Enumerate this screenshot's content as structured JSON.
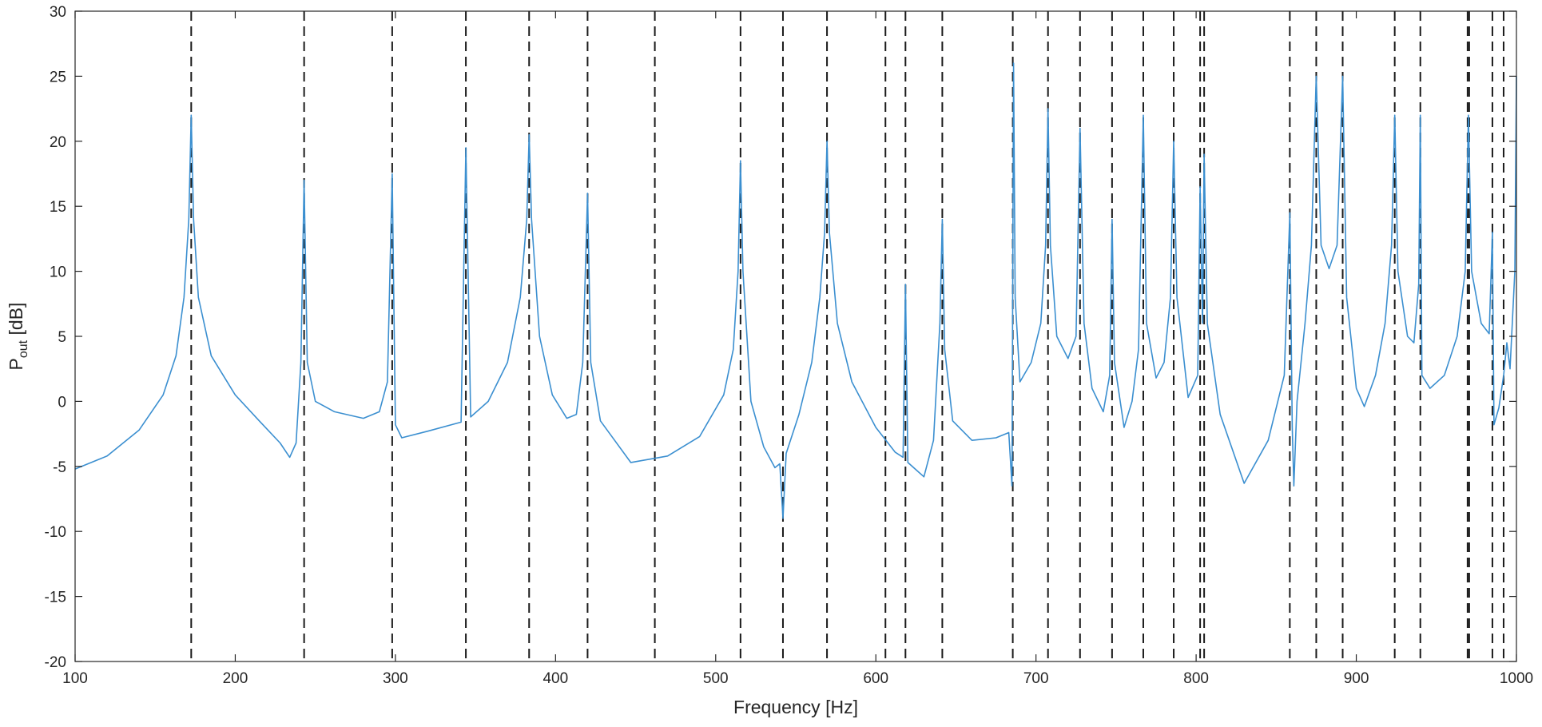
{
  "chart_data": {
    "type": "line",
    "title": "",
    "xlabel": "Frequency [Hz]",
    "ylabel": {
      "main": "P",
      "subscript": "out",
      "unit": " [dB]"
    },
    "xlim": [
      100,
      1000
    ],
    "ylim": [
      -20,
      30
    ],
    "x_ticks": [
      100,
      200,
      300,
      400,
      500,
      600,
      700,
      800,
      900,
      1000
    ],
    "y_ticks": [
      -20,
      -15,
      -10,
      -5,
      0,
      5,
      10,
      15,
      20,
      25,
      30
    ],
    "grid": false,
    "legend": "none",
    "colors": {
      "series": "#3b8fd0",
      "mode_lines": "#1a1a1a",
      "axes": "#262626"
    },
    "series": [
      {
        "values_note_free": true,
        "points": [
          [
            100,
            -5.2
          ],
          [
            120,
            -4.2
          ],
          [
            140,
            -2.2
          ],
          [
            155,
            0.5
          ],
          [
            163,
            3.5
          ],
          [
            168,
            8
          ],
          [
            171,
            14
          ],
          [
            172.5,
            22
          ],
          [
            174,
            14
          ],
          [
            177,
            8
          ],
          [
            185,
            3.5
          ],
          [
            200,
            0.5
          ],
          [
            215,
            -1.5
          ],
          [
            228,
            -3.2
          ],
          [
            234,
            -4.3
          ],
          [
            238,
            -3.2
          ],
          [
            241,
            3
          ],
          [
            243,
            17
          ],
          [
            245,
            3
          ],
          [
            250,
            0
          ],
          [
            262,
            -0.8
          ],
          [
            280,
            -1.3
          ],
          [
            290,
            -0.8
          ],
          [
            295,
            1.5
          ],
          [
            298,
            17.5
          ],
          [
            300,
            -1.8
          ],
          [
            304,
            -2.8
          ],
          [
            320,
            -2.3
          ],
          [
            341,
            -1.6
          ],
          [
            344,
            19.5
          ],
          [
            347,
            -1.2
          ],
          [
            358,
            0
          ],
          [
            370,
            3
          ],
          [
            378,
            8
          ],
          [
            382,
            14
          ],
          [
            383.5,
            20.5
          ],
          [
            385,
            14
          ],
          [
            390,
            5
          ],
          [
            398,
            0.5
          ],
          [
            407,
            -1.3
          ],
          [
            413,
            -1
          ],
          [
            417,
            3
          ],
          [
            420,
            16
          ],
          [
            422,
            3
          ],
          [
            428,
            -1.5
          ],
          [
            447,
            -4.7
          ],
          [
            470,
            -4.2
          ],
          [
            490,
            -2.7
          ],
          [
            505,
            0.5
          ],
          [
            511,
            4
          ],
          [
            514,
            10
          ],
          [
            515.5,
            18.5
          ],
          [
            517,
            10
          ],
          [
            522,
            0
          ],
          [
            530,
            -3.5
          ],
          [
            537,
            -5.1
          ],
          [
            540,
            -4.8
          ],
          [
            542,
            -9
          ],
          [
            544,
            -4
          ],
          [
            552,
            -1
          ],
          [
            560,
            3
          ],
          [
            565,
            8
          ],
          [
            568,
            13
          ],
          [
            569.5,
            20
          ],
          [
            571,
            13
          ],
          [
            576,
            6
          ],
          [
            585,
            1.5
          ],
          [
            600,
            -2
          ],
          [
            612,
            -3.9
          ],
          [
            617,
            -4.3
          ],
          [
            618.5,
            9
          ],
          [
            620,
            -4.7
          ],
          [
            630,
            -5.8
          ],
          [
            636,
            -3
          ],
          [
            640,
            6
          ],
          [
            641.5,
            14
          ],
          [
            643,
            4
          ],
          [
            648,
            -1.5
          ],
          [
            660,
            -3
          ],
          [
            675,
            -2.8
          ],
          [
            683,
            -2.4
          ],
          [
            685,
            -6.5
          ],
          [
            686,
            26
          ],
          [
            687,
            8
          ],
          [
            690,
            1.5
          ],
          [
            697,
            3
          ],
          [
            703,
            6
          ],
          [
            706,
            12
          ],
          [
            707.5,
            22.5
          ],
          [
            709,
            12
          ],
          [
            713,
            5
          ],
          [
            720,
            3.3
          ],
          [
            725,
            5
          ],
          [
            727.5,
            21
          ],
          [
            730,
            6
          ],
          [
            735,
            1
          ],
          [
            742,
            -0.8
          ],
          [
            746,
            2
          ],
          [
            747.5,
            14
          ],
          [
            749,
            3
          ],
          [
            755,
            -2
          ],
          [
            760,
            0
          ],
          [
            764,
            4
          ],
          [
            767,
            22
          ],
          [
            769,
            6
          ],
          [
            775,
            1.8
          ],
          [
            780,
            3
          ],
          [
            784,
            8
          ],
          [
            786,
            20
          ],
          [
            788,
            8
          ],
          [
            795,
            0.3
          ],
          [
            801,
            2
          ],
          [
            802.5,
            16.5
          ],
          [
            804,
            6
          ],
          [
            805,
            19
          ],
          [
            807,
            6
          ],
          [
            815,
            -1
          ],
          [
            830,
            -6.3
          ],
          [
            845,
            -3
          ],
          [
            855,
            2
          ],
          [
            858.5,
            14.5
          ],
          [
            860,
            -2
          ],
          [
            861,
            -6.5
          ],
          [
            863,
            0
          ],
          [
            868,
            6
          ],
          [
            872,
            12
          ],
          [
            875,
            25
          ],
          [
            878,
            12
          ],
          [
            883,
            10.2
          ],
          [
            888,
            12
          ],
          [
            891.5,
            25
          ],
          [
            894,
            8
          ],
          [
            900,
            1
          ],
          [
            905,
            -0.4
          ],
          [
            912,
            2
          ],
          [
            918,
            6
          ],
          [
            922,
            12
          ],
          [
            924,
            22
          ],
          [
            926,
            10
          ],
          [
            932,
            5
          ],
          [
            936,
            4.5
          ],
          [
            939,
            9
          ],
          [
            940,
            22
          ],
          [
            941,
            2
          ],
          [
            946,
            1
          ],
          [
            955,
            2
          ],
          [
            963,
            5
          ],
          [
            968,
            10
          ],
          [
            970,
            22
          ],
          [
            972,
            10
          ],
          [
            978,
            6
          ],
          [
            983,
            5.2
          ],
          [
            985,
            13
          ],
          [
            986,
            -1.8
          ],
          [
            989,
            -0.5
          ],
          [
            992,
            2
          ],
          [
            994,
            4.5
          ],
          [
            996,
            2.5
          ],
          [
            999,
            10
          ],
          [
            1000,
            25
          ]
        ]
      }
    ],
    "mode_lines_x": [
      172.5,
      243,
      298,
      344,
      383.5,
      420,
      462,
      515.5,
      542,
      569.5,
      606,
      618.5,
      641.5,
      685.5,
      707.5,
      727.5,
      747.5,
      767,
      786,
      802.5,
      805,
      858.5,
      875,
      891.5,
      924,
      940,
      969.5,
      970.5,
      985,
      992
    ]
  }
}
